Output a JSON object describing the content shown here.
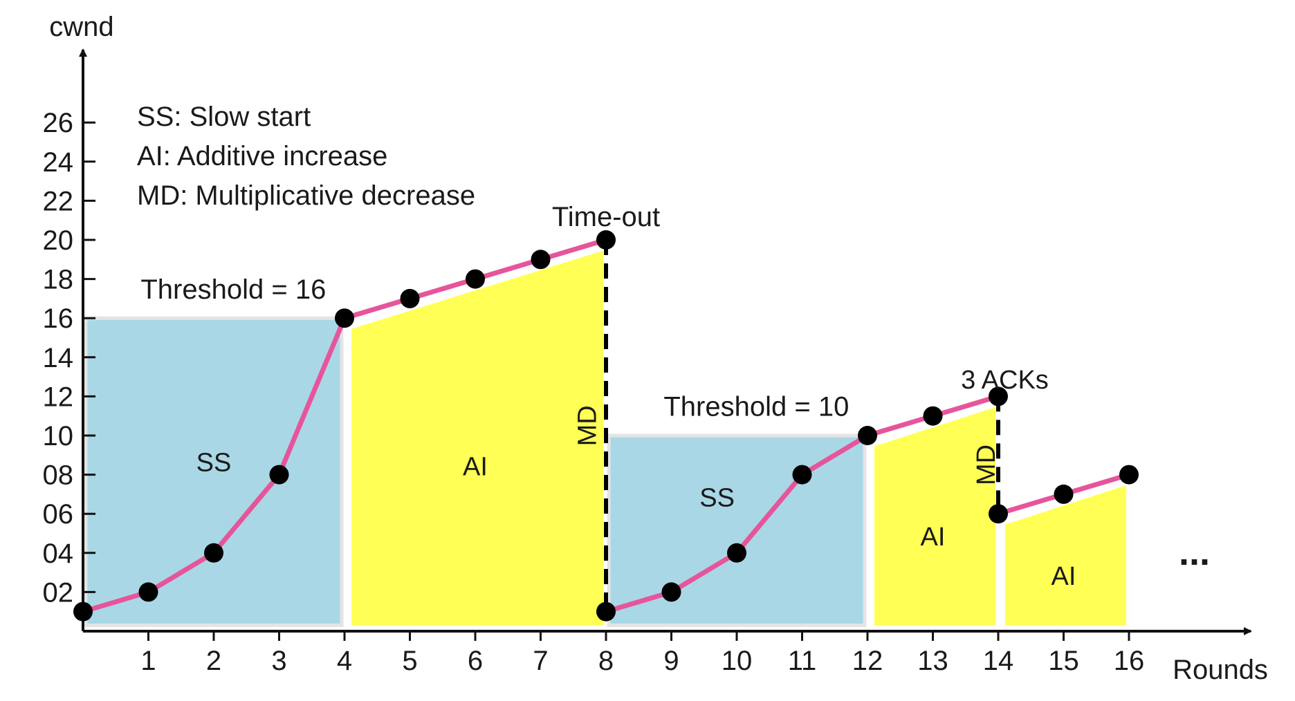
{
  "chart_data": {
    "type": "line",
    "ylabel": "cwnd",
    "xlabel": "Rounds",
    "xlim": [
      0,
      16
    ],
    "ylim": [
      0,
      26
    ],
    "x_ticks": [
      "1",
      "2",
      "3",
      "4",
      "5",
      "6",
      "7",
      "8",
      "9",
      "10",
      "11",
      "12",
      "13",
      "14",
      "15",
      "16"
    ],
    "y_ticks": [
      "02",
      "04",
      "06",
      "08",
      "10",
      "12",
      "14",
      "16",
      "18",
      "20",
      "22",
      "24",
      "26"
    ],
    "legend": [
      "SS: Slow start",
      "AI: Additive increase",
      "MD: Multiplicative decrease"
    ],
    "series": [
      {
        "points": [
          [
            0,
            1
          ],
          [
            1,
            2
          ],
          [
            2,
            4
          ],
          [
            3,
            8
          ],
          [
            4,
            16
          ],
          [
            5,
            17
          ],
          [
            6,
            18
          ],
          [
            7,
            19
          ],
          [
            8,
            20
          ],
          [
            8,
            1
          ],
          [
            9,
            2
          ],
          [
            10,
            4
          ],
          [
            11,
            8
          ],
          [
            12,
            10
          ],
          [
            13,
            11
          ],
          [
            14,
            12
          ],
          [
            14,
            6
          ],
          [
            15,
            7
          ],
          [
            16,
            8
          ]
        ]
      }
    ],
    "regions": [
      {
        "label": "SS",
        "type": "ss",
        "x0": 0,
        "x1": 4,
        "level": 16,
        "label_pos": [
          2,
          8.6
        ]
      },
      {
        "label": "AI",
        "type": "ai",
        "x0": 4,
        "x1": 8,
        "y0": 16,
        "y1": 20,
        "label_pos": [
          6,
          8.4
        ]
      },
      {
        "label": "SS",
        "type": "ss",
        "x0": 8,
        "x1": 12,
        "level": 10,
        "label_pos": [
          9.7,
          6.8
        ]
      },
      {
        "label": "AI",
        "type": "ai",
        "x0": 12,
        "x1": 14,
        "y0": 10,
        "y1": 12,
        "label_pos": [
          13,
          4.8
        ]
      },
      {
        "label": "AI",
        "type": "ai",
        "x0": 14,
        "x1": 16,
        "y0": 6,
        "y1": 8,
        "label_pos": [
          15,
          2.8
        ]
      }
    ],
    "annotations": {
      "threshold1": {
        "text": "Threshold = 16",
        "pos": [
          2.3,
          17.5
        ]
      },
      "threshold2": {
        "text": "Threshold = 10",
        "pos": [
          10.3,
          11.5
        ]
      },
      "timeout": {
        "text": "Time-out",
        "pos": [
          8.0,
          21.2
        ]
      },
      "acks": {
        "text": "3 ACKs",
        "pos": [
          14.1,
          12.9
        ]
      },
      "md1": {
        "text": "MD",
        "pos": [
          7.7,
          10.5
        ]
      },
      "md2": {
        "text": "MD",
        "pos": [
          13.8,
          8.5
        ]
      },
      "ellipsis": {
        "text": "...",
        "pos": [
          17.0,
          3.4
        ]
      }
    },
    "colors": {
      "ss_fill": "#a9d7e6",
      "ai_fill": "#ffff55",
      "line": "#e6559b",
      "marker": "#000000",
      "axis": "#111111"
    },
    "grid": false
  }
}
